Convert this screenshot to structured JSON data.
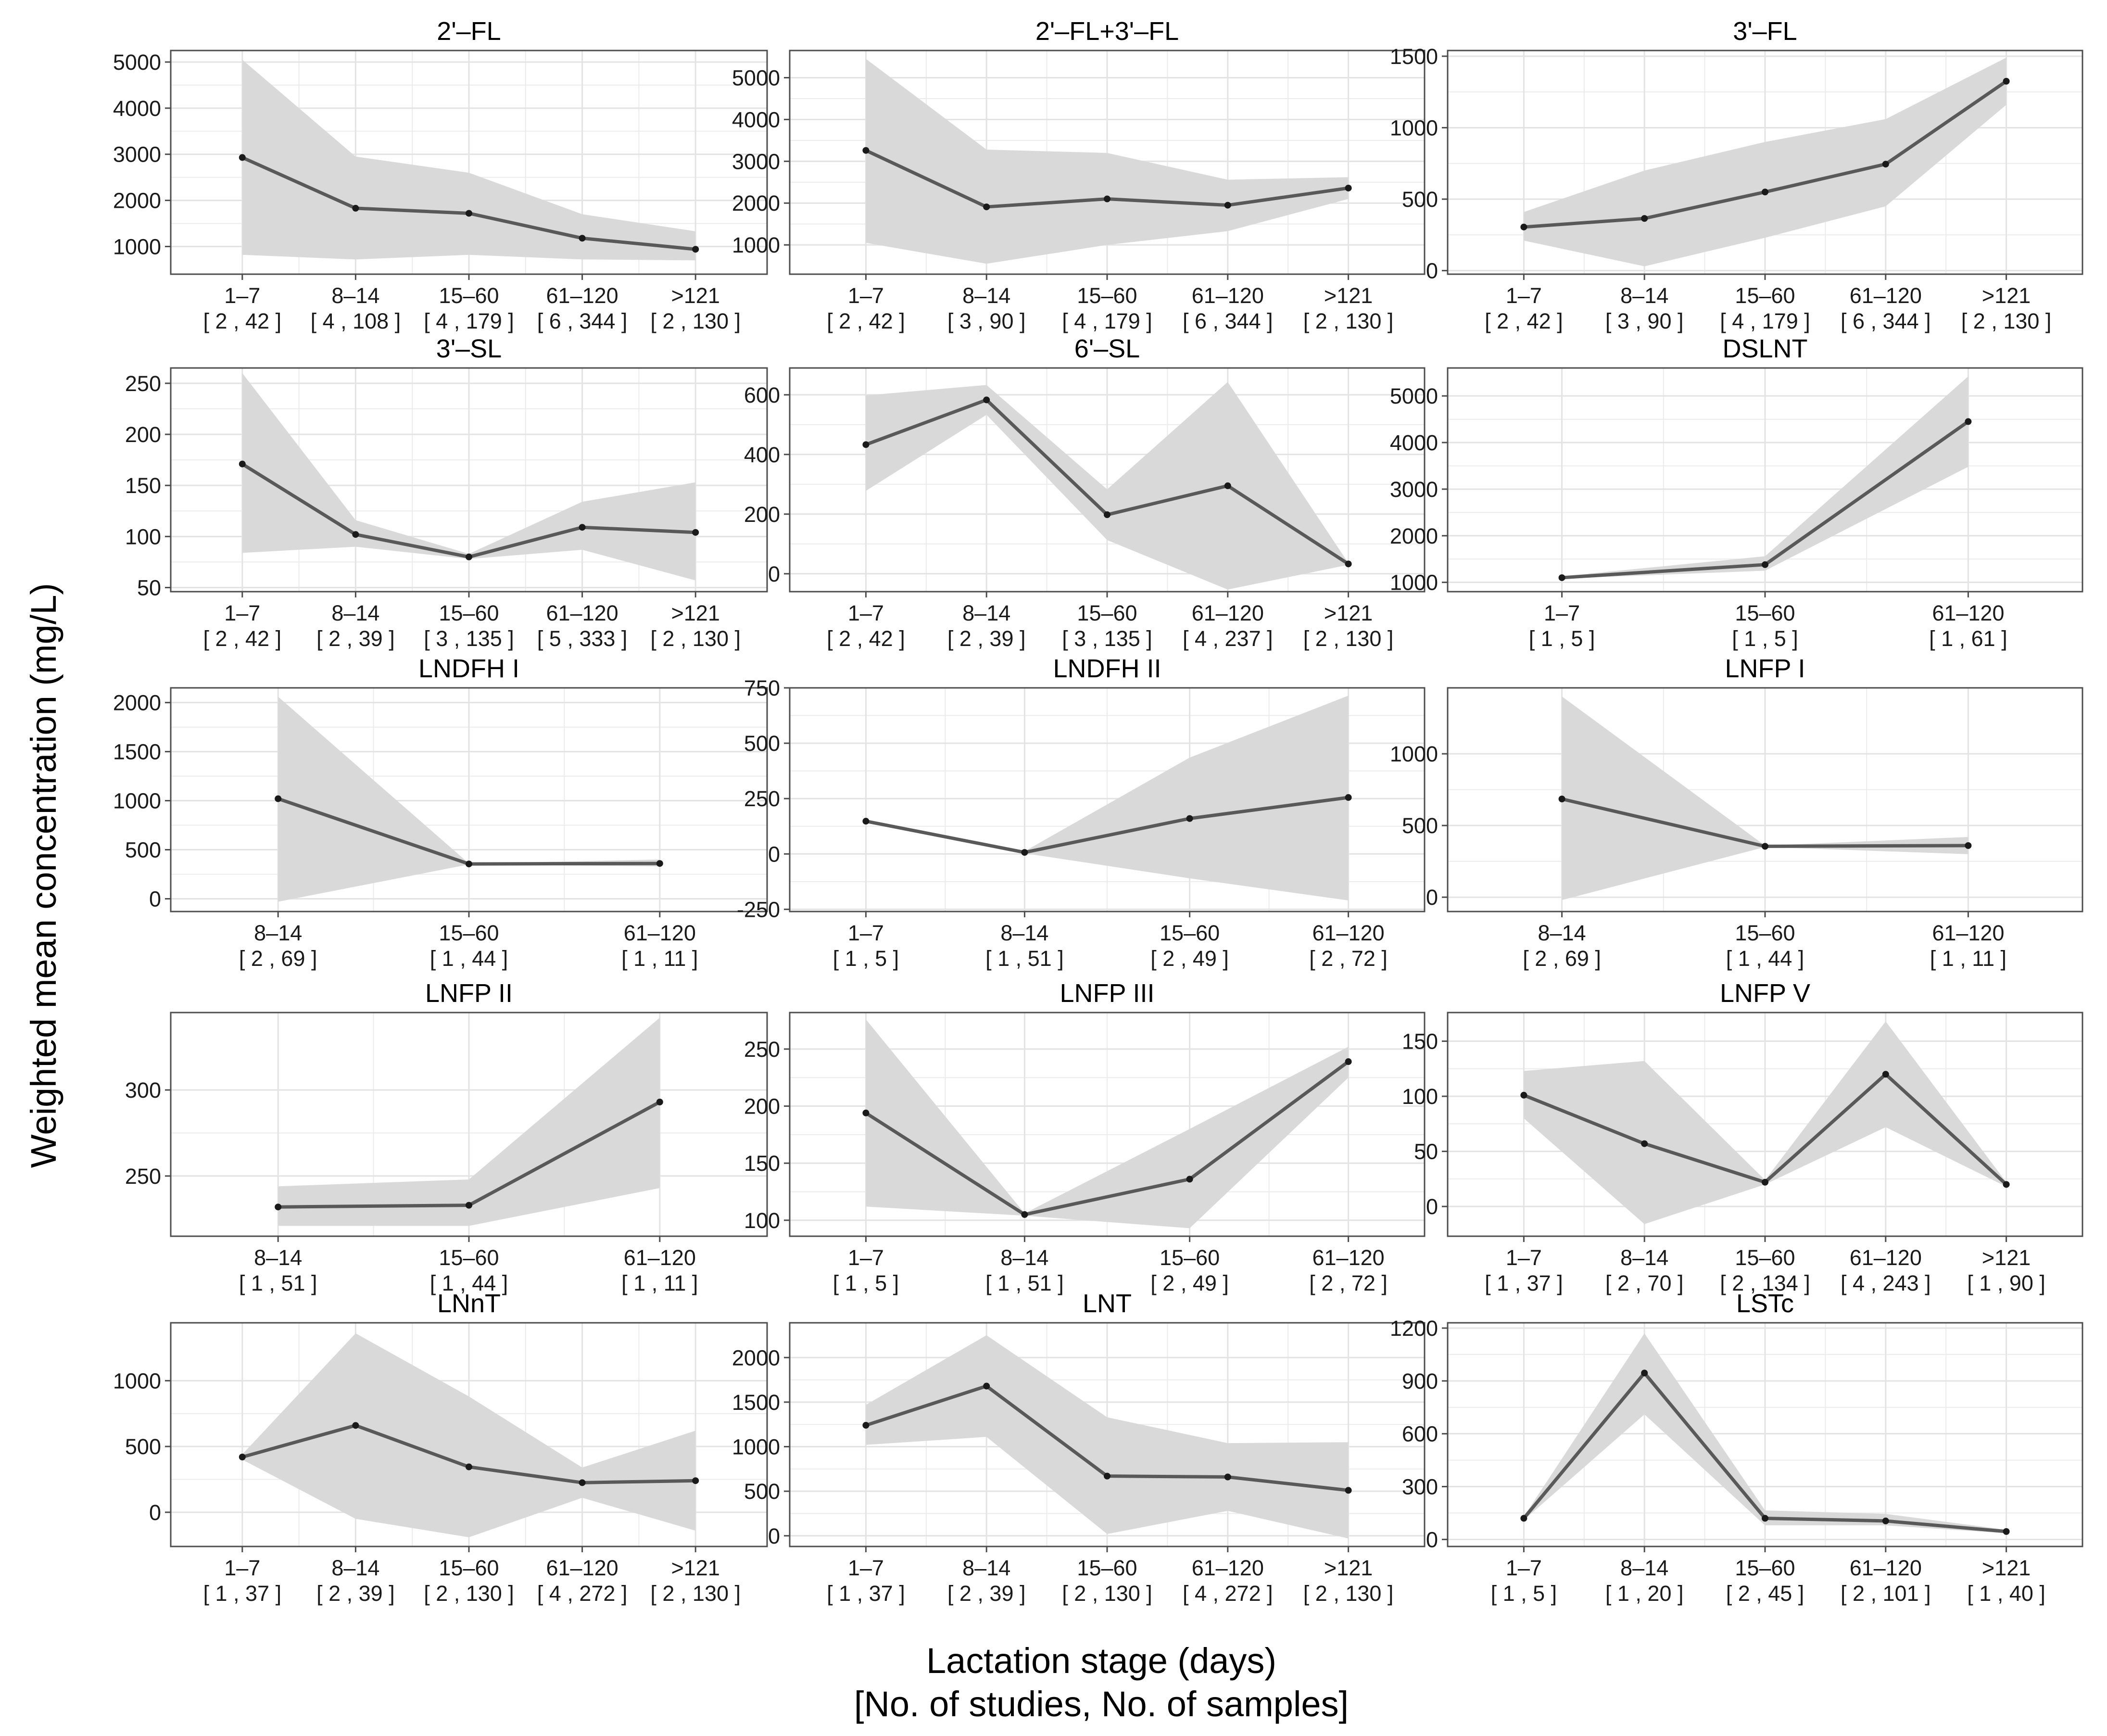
{
  "figure": {
    "ylabel": "Weighted mean concentration (mg/L)",
    "xlabel_line1": "Lactation stage (days)",
    "xlabel_line2": "[No. of studies, No. of samples]"
  },
  "colors": {
    "band": "#d9d9d9",
    "line": "#595959",
    "point": "#1a1a1a",
    "panel_border": "#4d4d4d",
    "grid": "#ebebeb",
    "text": "#000000",
    "tick_label": "#1a1a1a"
  },
  "chart_data": [
    {
      "type": "line",
      "title": "2'–FL",
      "ylim": [
        400,
        5250
      ],
      "yticks": [
        1000,
        2000,
        3000,
        4000,
        5000
      ],
      "categories": [
        "1–7",
        "8–14",
        "15–60",
        "61–120",
        ">121"
      ],
      "counts": [
        "[ 2 , 42 ]",
        "[ 4 , 108 ]",
        "[ 4 , 179 ]",
        "[ 6 , 344 ]",
        "[ 2 , 130 ]"
      ],
      "values": [
        2930,
        1830,
        1720,
        1180,
        940
      ],
      "lower": [
        820,
        720,
        820,
        720,
        700
      ],
      "upper": [
        5050,
        2950,
        2600,
        1700,
        1330
      ]
    },
    {
      "type": "line",
      "title": "2'–FL+3'–FL",
      "ylim": [
        300,
        5650
      ],
      "yticks": [
        1000,
        2000,
        3000,
        4000,
        5000
      ],
      "categories": [
        "1–7",
        "8–14",
        "15–60",
        "61–120",
        ">121"
      ],
      "counts": [
        "[ 2 , 42 ]",
        "[ 3 , 90 ]",
        "[ 4 , 179 ]",
        "[ 6 , 344 ]",
        "[ 2 , 130 ]"
      ],
      "values": [
        3260,
        1910,
        2100,
        1950,
        2360
      ],
      "lower": [
        1050,
        550,
        1000,
        1330,
        2100
      ],
      "upper": [
        5450,
        3280,
        3200,
        2560,
        2620
      ]
    },
    {
      "type": "line",
      "title": "3'–FL",
      "ylim": [
        -25,
        1540
      ],
      "yticks": [
        0,
        500,
        1000,
        1500
      ],
      "categories": [
        "1–7",
        "8–14",
        "15–60",
        "61–120",
        ">121"
      ],
      "counts": [
        "[ 2 , 42 ]",
        "[ 3 , 90 ]",
        "[ 4 , 179 ]",
        "[ 6 , 344 ]",
        "[ 2 , 130 ]"
      ],
      "values": [
        305,
        365,
        550,
        745,
        1325
      ],
      "lower": [
        210,
        30,
        230,
        450,
        1160
      ],
      "upper": [
        410,
        700,
        900,
        1060,
        1490
      ]
    },
    {
      "type": "line",
      "title": "3'–SL",
      "ylim": [
        46,
        265
      ],
      "yticks": [
        50,
        100,
        150,
        200,
        250
      ],
      "categories": [
        "1–7",
        "8–14",
        "15–60",
        "61–120",
        ">121"
      ],
      "counts": [
        "[ 2 , 42 ]",
        "[ 2 , 39 ]",
        "[ 3 , 135 ]",
        "[ 5 , 333 ]",
        "[ 2 , 130 ]"
      ],
      "values": [
        171,
        102,
        80,
        109,
        104
      ],
      "lower": [
        84,
        90,
        78,
        87,
        57
      ],
      "upper": [
        260,
        116,
        83,
        134,
        153
      ]
    },
    {
      "type": "line",
      "title": "6'–SL",
      "ylim": [
        -60,
        690
      ],
      "yticks": [
        0,
        200,
        400,
        600
      ],
      "categories": [
        "1–7",
        "8–14",
        "15–60",
        "61–120",
        ">121"
      ],
      "counts": [
        "[ 2 , 42 ]",
        "[ 2 , 39 ]",
        "[ 3 , 135 ]",
        "[ 4 , 237 ]",
        "[ 2 , 130 ]"
      ],
      "values": [
        433,
        583,
        198,
        295,
        33
      ],
      "lower": [
        278,
        533,
        113,
        -53,
        30
      ],
      "upper": [
        598,
        633,
        283,
        643,
        36
      ]
    },
    {
      "type": "line",
      "title": "DSLNT",
      "ylim": [
        800,
        5600
      ],
      "yticks": [
        1000,
        2000,
        3000,
        4000,
        5000
      ],
      "categories": [
        "1–7",
        "15–60",
        "61–120"
      ],
      "counts": [
        "[ 1 , 5 ]",
        "[ 1 , 5 ]",
        "[ 1 , 61 ]"
      ],
      "values": [
        1100,
        1380,
        4450
      ],
      "lower": [
        1080,
        1250,
        3480
      ],
      "upper": [
        1130,
        1560,
        5420
      ]
    },
    {
      "type": "line",
      "title": "LNDFH I",
      "ylim": [
        -130,
        2150
      ],
      "yticks": [
        0,
        500,
        1000,
        1500,
        2000
      ],
      "categories": [
        "8–14",
        "15–60",
        "61–120"
      ],
      "counts": [
        "[ 2 , 69 ]",
        "[ 1 , 44 ]",
        "[ 1 , 11 ]"
      ],
      "values": [
        1020,
        355,
        360
      ],
      "lower": [
        -30,
        350,
        330
      ],
      "upper": [
        2060,
        360,
        400
      ]
    },
    {
      "type": "line",
      "title": "LNDFH II",
      "ylim": [
        -260,
        750
      ],
      "yticks": [
        -250,
        0,
        250,
        500,
        750
      ],
      "categories": [
        "1–7",
        "8–14",
        "15–60",
        "61–120"
      ],
      "counts": [
        "[ 1 , 5 ]",
        "[ 1 , 51 ]",
        "[ 2 , 49 ]",
        "[ 2 , 72 ]"
      ],
      "values": [
        148,
        7,
        160,
        255
      ],
      "lower": [
        140,
        3,
        -110,
        -210
      ],
      "upper": [
        155,
        12,
        435,
        715
      ]
    },
    {
      "type": "line",
      "title": "LNFP I",
      "ylim": [
        -100,
        1460
      ],
      "yticks": [
        0,
        500,
        1000
      ],
      "categories": [
        "8–14",
        "15–60",
        "61–120"
      ],
      "counts": [
        "[ 2 , 69 ]",
        "[ 1 , 44 ]",
        "[ 1 , 11 ]"
      ],
      "values": [
        685,
        355,
        360
      ],
      "lower": [
        -20,
        350,
        300
      ],
      "upper": [
        1400,
        360,
        420
      ]
    },
    {
      "type": "line",
      "title": "LNFP II",
      "ylim": [
        215,
        345
      ],
      "yticks": [
        250,
        300
      ],
      "categories": [
        "8–14",
        "15–60",
        "61–120"
      ],
      "counts": [
        "[ 1 , 51 ]",
        "[ 1 , 44 ]",
        "[ 1 , 11 ]"
      ],
      "values": [
        232,
        233,
        293
      ],
      "lower": [
        221,
        221,
        243
      ],
      "upper": [
        244,
        248,
        342
      ]
    },
    {
      "type": "line",
      "title": "LNFP III",
      "ylim": [
        86,
        282
      ],
      "yticks": [
        100,
        150,
        200,
        250
      ],
      "categories": [
        "1–7",
        "8–14",
        "15–60",
        "61–120"
      ],
      "counts": [
        "[ 1 , 5 ]",
        "[ 1 , 51 ]",
        "[ 2 , 49 ]",
        "[ 2 , 72 ]"
      ],
      "values": [
        194,
        105,
        136,
        239
      ],
      "lower": [
        112,
        104,
        93,
        225
      ],
      "upper": [
        276,
        106,
        180,
        252
      ]
    },
    {
      "type": "line",
      "title": "LNFP V",
      "ylim": [
        -27,
        176
      ],
      "yticks": [
        0,
        50,
        100,
        150
      ],
      "categories": [
        "1–7",
        "8–14",
        "15–60",
        "61–120",
        ">121"
      ],
      "counts": [
        "[ 1 , 37 ]",
        "[ 2 , 70 ]",
        "[ 2 , 134 ]",
        "[ 4 , 243 ]",
        "[ 1 , 90 ]"
      ],
      "values": [
        101,
        57,
        22,
        120,
        20
      ],
      "lower": [
        80,
        -16,
        20,
        72,
        18
      ],
      "upper": [
        123,
        132,
        24,
        168,
        22
      ]
    },
    {
      "type": "line",
      "title": "LNnT",
      "ylim": [
        -260,
        1440
      ],
      "yticks": [
        0,
        500,
        1000
      ],
      "categories": [
        "1–7",
        "8–14",
        "15–60",
        "61–120",
        ">121"
      ],
      "counts": [
        "[ 1 , 37 ]",
        "[ 2 , 39 ]",
        "[ 2 , 130 ]",
        "[ 4 , 272 ]",
        "[ 2 , 130 ]"
      ],
      "values": [
        420,
        660,
        345,
        225,
        240
      ],
      "lower": [
        400,
        -50,
        -190,
        110,
        -140
      ],
      "upper": [
        440,
        1360,
        880,
        340,
        620
      ]
    },
    {
      "type": "line",
      "title": "LNT",
      "ylim": [
        -120,
        2390
      ],
      "yticks": [
        0,
        500,
        1000,
        1500,
        2000
      ],
      "categories": [
        "1–7",
        "8–14",
        "15–60",
        "61–120",
        ">121"
      ],
      "counts": [
        "[ 1 , 37 ]",
        "[ 2 , 39 ]",
        "[ 2 , 130 ]",
        "[ 4 , 272 ]",
        "[ 2 , 130 ]"
      ],
      "values": [
        1240,
        1680,
        670,
        660,
        510
      ],
      "lower": [
        1020,
        1110,
        20,
        280,
        -30
      ],
      "upper": [
        1470,
        2250,
        1330,
        1040,
        1050
      ]
    },
    {
      "type": "line",
      "title": "LSTc",
      "ylim": [
        -40,
        1230
      ],
      "yticks": [
        0,
        300,
        600,
        900,
        1200
      ],
      "categories": [
        "1–7",
        "8–14",
        "15–60",
        "61–120",
        ">121"
      ],
      "counts": [
        "[ 1 , 5 ]",
        "[ 1 , 20 ]",
        "[ 2 , 45 ]",
        "[ 2 , 101 ]",
        "[ 1 , 40 ]"
      ],
      "values": [
        120,
        945,
        120,
        105,
        45
      ],
      "lower": [
        110,
        710,
        80,
        80,
        35
      ],
      "upper": [
        130,
        1170,
        165,
        145,
        55
      ]
    }
  ]
}
